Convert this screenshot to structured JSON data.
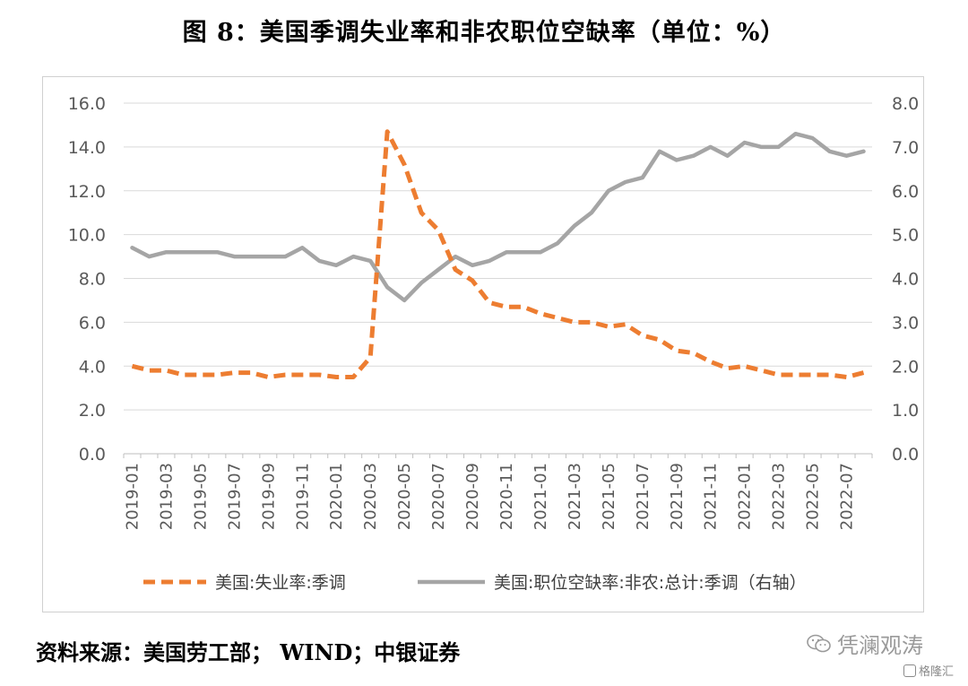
{
  "title": "图 8：美国季调失业率和非农职位空缺率（单位：%）",
  "source": "资料来源：美国劳工部； WIND；中银证券",
  "watermark": "凭澜观涛",
  "watermark2": "格隆汇",
  "chart_data": {
    "type": "line",
    "left_axis": {
      "ticks": [
        "0.0",
        "2.0",
        "4.0",
        "6.0",
        "8.0",
        "10.0",
        "12.0",
        "14.0",
        "16.0"
      ],
      "min": 0,
      "max": 16
    },
    "right_axis": {
      "ticks": [
        "0.0",
        "1.0",
        "2.0",
        "3.0",
        "4.0",
        "5.0",
        "6.0",
        "7.0",
        "8.0"
      ],
      "min": 0,
      "max": 8
    },
    "grid": true,
    "legend_position": "bottom",
    "x_tick_labels": [
      "2019-01",
      "2019-03",
      "2019-05",
      "2019-07",
      "2019-09",
      "2019-11",
      "2020-01",
      "2020-03",
      "2020-05",
      "2020-07",
      "2020-09",
      "2020-11",
      "2021-01",
      "2021-03",
      "2021-05",
      "2021-07",
      "2021-09",
      "2021-11",
      "2022-01",
      "2022-03",
      "2022-05",
      "2022-07"
    ],
    "x": [
      "2019-01",
      "2019-02",
      "2019-03",
      "2019-04",
      "2019-05",
      "2019-06",
      "2019-07",
      "2019-08",
      "2019-09",
      "2019-10",
      "2019-11",
      "2019-12",
      "2020-01",
      "2020-02",
      "2020-03",
      "2020-04",
      "2020-05",
      "2020-06",
      "2020-07",
      "2020-08",
      "2020-09",
      "2020-10",
      "2020-11",
      "2020-12",
      "2021-01",
      "2021-02",
      "2021-03",
      "2021-04",
      "2021-05",
      "2021-06",
      "2021-07",
      "2021-08",
      "2021-09",
      "2021-10",
      "2021-11",
      "2021-12",
      "2022-01",
      "2022-02",
      "2022-03",
      "2022-04",
      "2022-05",
      "2022-06",
      "2022-07",
      "2022-08"
    ],
    "series": [
      {
        "name": "美国:失业率:季调",
        "axis": "left",
        "style": "dashed",
        "color": "#ED7D31",
        "values": [
          4.0,
          3.8,
          3.8,
          3.6,
          3.6,
          3.6,
          3.7,
          3.7,
          3.5,
          3.6,
          3.6,
          3.6,
          3.5,
          3.5,
          4.4,
          14.7,
          13.2,
          11.0,
          10.2,
          8.4,
          7.9,
          6.9,
          6.7,
          6.7,
          6.4,
          6.2,
          6.0,
          6.0,
          5.8,
          5.9,
          5.4,
          5.2,
          4.7,
          4.6,
          4.2,
          3.9,
          4.0,
          3.8,
          3.6,
          3.6,
          3.6,
          3.6,
          3.5,
          3.7
        ]
      },
      {
        "name": "美国:职位空缺率:非农:总计:季调（右轴）",
        "axis": "right",
        "style": "solid",
        "color": "#A5A5A5",
        "values": [
          4.7,
          4.5,
          4.6,
          4.6,
          4.6,
          4.6,
          4.5,
          4.5,
          4.5,
          4.5,
          4.7,
          4.4,
          4.3,
          4.5,
          4.4,
          3.8,
          3.5,
          3.9,
          4.2,
          4.5,
          4.3,
          4.4,
          4.6,
          4.6,
          4.6,
          4.8,
          5.2,
          5.5,
          6.0,
          6.2,
          6.3,
          6.9,
          6.7,
          6.8,
          7.0,
          6.8,
          7.1,
          7.0,
          7.0,
          7.3,
          7.2,
          6.9,
          6.8,
          6.9
        ]
      }
    ]
  }
}
